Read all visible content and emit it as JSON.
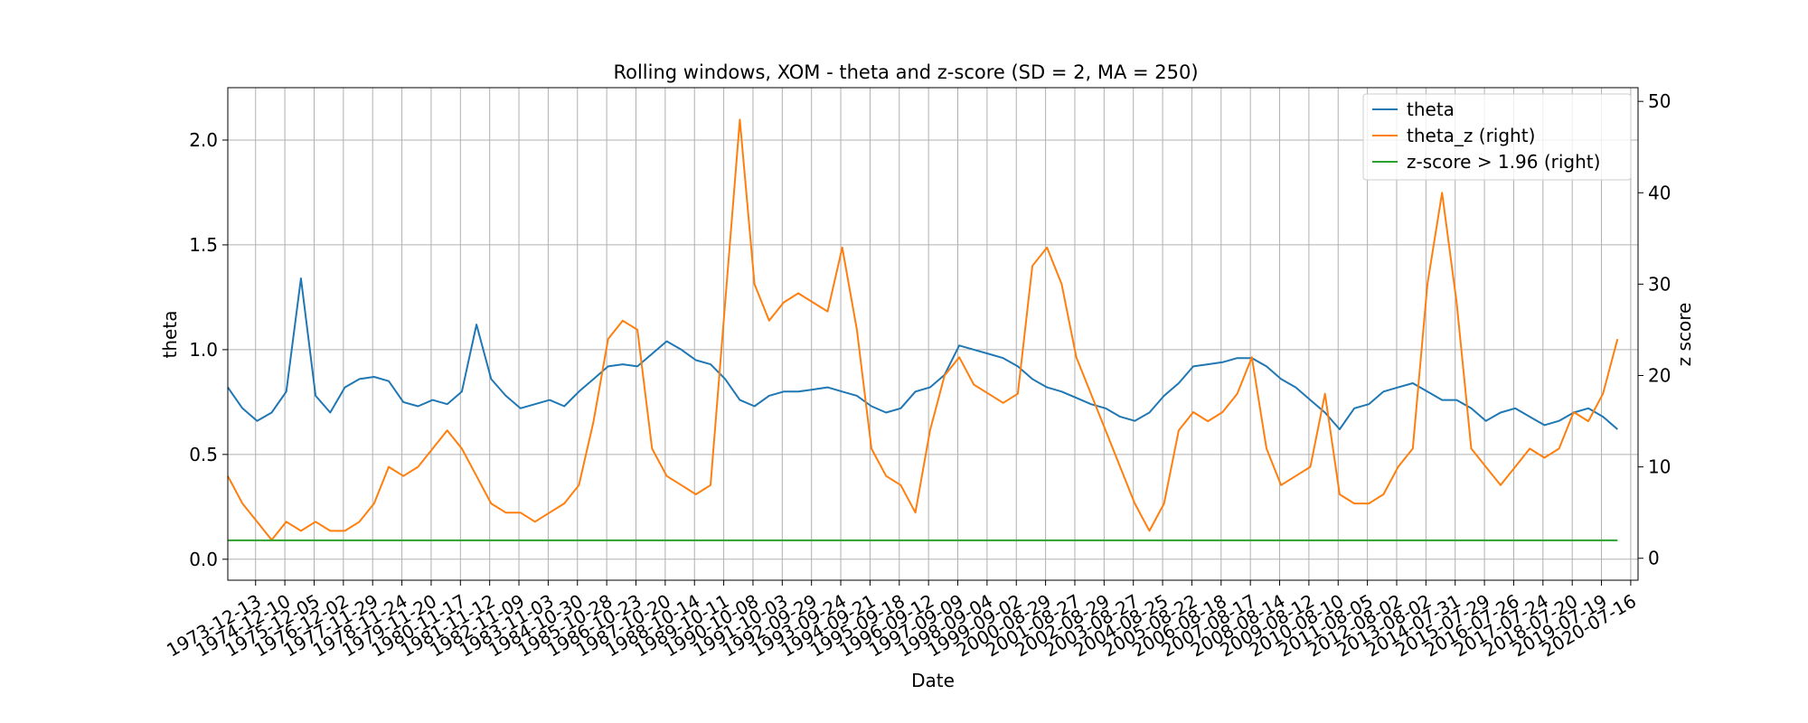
{
  "chart_data": {
    "type": "line",
    "title": "Rolling windows, XOM - theta and z-score (SD = 2, MA = 250)",
    "xlabel": "Date",
    "ylabel": "theta",
    "ylabel_right": "z score",
    "ylim": [
      -0.1,
      2.25
    ],
    "ylim_right": [
      -2.4,
      51.5
    ],
    "y_ticks": [
      0.0,
      0.5,
      1.0,
      1.5,
      2.0
    ],
    "y_tick_labels": [
      "0.0",
      "0.5",
      "1.0",
      "1.5",
      "2.0"
    ],
    "y_right_ticks": [
      0,
      10,
      20,
      30,
      40,
      50
    ],
    "y_right_tick_labels": [
      "0",
      "10",
      "20",
      "30",
      "40",
      "50"
    ],
    "grid": true,
    "legend_position": "top-right",
    "x_tick_labels": [
      "1973-12-13",
      "1974-12-10",
      "1975-12-05",
      "1976-12-02",
      "1977-11-29",
      "1978-11-24",
      "1979-11-20",
      "1980-11-17",
      "1981-11-12",
      "1982-11-09",
      "1983-11-03",
      "1984-10-30",
      "1985-10-28",
      "1986-10-23",
      "1987-10-20",
      "1988-10-14",
      "1989-10-11",
      "1990-10-08",
      "1991-10-03",
      "1992-09-29",
      "1993-09-24",
      "1994-09-21",
      "1995-09-18",
      "1996-09-12",
      "1997-09-09",
      "1998-09-04",
      "1999-09-02",
      "2000-08-29",
      "2001-08-27",
      "2002-08-29",
      "2003-08-27",
      "2004-08-25",
      "2005-08-22",
      "2006-08-18",
      "2007-08-17",
      "2008-08-14",
      "2009-08-12",
      "2010-08-10",
      "2011-08-05",
      "2012-08-02",
      "2013-08-02",
      "2014-07-31",
      "2015-07-29",
      "2016-07-26",
      "2017-07-24",
      "2018-07-20",
      "2019-07-19",
      "2020-07-16"
    ],
    "x": [
      1973.0,
      1973.5,
      1974.0,
      1974.5,
      1975.0,
      1975.5,
      1976.0,
      1976.5,
      1977.0,
      1977.5,
      1978.0,
      1978.5,
      1979.0,
      1979.5,
      1980.0,
      1980.5,
      1981.0,
      1981.5,
      1982.0,
      1982.5,
      1983.0,
      1983.5,
      1984.0,
      1984.5,
      1985.0,
      1985.5,
      1986.0,
      1986.5,
      1987.0,
      1987.5,
      1988.0,
      1988.5,
      1989.0,
      1989.5,
      1990.0,
      1990.5,
      1991.0,
      1991.5,
      1992.0,
      1992.5,
      1993.0,
      1993.5,
      1994.0,
      1994.5,
      1995.0,
      1995.5,
      1996.0,
      1996.5,
      1997.0,
      1997.5,
      1998.0,
      1998.5,
      1999.0,
      1999.5,
      2000.0,
      2000.5,
      2001.0,
      2001.5,
      2002.0,
      2002.5,
      2003.0,
      2003.5,
      2004.0,
      2004.5,
      2005.0,
      2005.5,
      2006.0,
      2006.5,
      2007.0,
      2007.5,
      2008.0,
      2008.5,
      2009.0,
      2009.5,
      2010.0,
      2010.5,
      2011.0,
      2011.5,
      2012.0,
      2012.5,
      2013.0,
      2013.5,
      2014.0,
      2014.5,
      2015.0,
      2015.5,
      2016.0,
      2016.5,
      2017.0,
      2017.5,
      2018.0,
      2018.5,
      2019.0,
      2019.5,
      2020.0,
      2020.5
    ],
    "series": [
      {
        "name": "theta",
        "axis": "left",
        "color": "#1f77b4",
        "values": [
          0.82,
          0.72,
          0.66,
          0.7,
          0.8,
          1.34,
          0.78,
          0.7,
          0.82,
          0.86,
          0.87,
          0.85,
          0.75,
          0.73,
          0.76,
          0.74,
          0.8,
          1.12,
          0.86,
          0.78,
          0.72,
          0.74,
          0.76,
          0.73,
          0.8,
          0.86,
          0.92,
          0.93,
          0.92,
          0.98,
          1.04,
          1.0,
          0.95,
          0.93,
          0.86,
          0.76,
          0.73,
          0.78,
          0.8,
          0.8,
          0.81,
          0.82,
          0.8,
          0.78,
          0.73,
          0.7,
          0.72,
          0.8,
          0.82,
          0.88,
          1.02,
          1.0,
          0.98,
          0.96,
          0.92,
          0.86,
          0.82,
          0.8,
          0.77,
          0.74,
          0.72,
          0.68,
          0.66,
          0.7,
          0.78,
          0.84,
          0.92,
          0.93,
          0.94,
          0.96,
          0.96,
          0.92,
          0.86,
          0.82,
          0.76,
          0.7,
          0.62,
          0.72,
          0.74,
          0.8,
          0.82,
          0.84,
          0.8,
          0.76,
          0.76,
          0.72,
          0.66,
          0.7,
          0.72,
          0.68,
          0.64,
          0.66,
          0.7,
          0.72,
          0.68,
          0.62
        ]
      },
      {
        "name": "theta_z (right)",
        "axis": "right",
        "color": "#ff7f0e",
        "values": [
          9,
          6,
          4,
          2,
          4,
          3,
          4,
          3,
          3,
          4,
          6,
          10,
          9,
          10,
          12,
          14,
          12,
          9,
          6,
          5,
          5,
          4,
          5,
          6,
          8,
          15,
          24,
          26,
          25,
          12,
          9,
          8,
          7,
          8,
          28,
          48,
          30,
          26,
          28,
          29,
          28,
          27,
          34,
          25,
          12,
          9,
          8,
          5,
          14,
          20,
          22,
          19,
          18,
          17,
          18,
          32,
          34,
          30,
          22,
          18,
          14,
          10,
          6,
          3,
          6,
          14,
          16,
          15,
          16,
          18,
          22,
          12,
          8,
          9,
          10,
          18,
          7,
          6,
          6,
          7,
          10,
          12,
          30,
          40,
          28,
          12,
          10,
          8,
          10,
          12,
          11,
          12,
          16,
          15,
          18,
          24
        ]
      },
      {
        "name": "z-score > 1.96 (right)",
        "axis": "right",
        "color": "#2ca02c",
        "values": [
          1.96,
          1.96,
          1.96,
          1.96,
          1.96,
          1.96,
          1.96,
          1.96,
          1.96,
          1.96,
          1.96,
          1.96,
          1.96,
          1.96,
          1.96,
          1.96,
          1.96,
          1.96,
          1.96,
          1.96,
          1.96,
          1.96,
          1.96,
          1.96,
          1.96,
          1.96,
          1.96,
          1.96,
          1.96,
          1.96,
          1.96,
          1.96,
          1.96,
          1.96,
          1.96,
          1.96,
          1.96,
          1.96,
          1.96,
          1.96,
          1.96,
          1.96,
          1.96,
          1.96,
          1.96,
          1.96,
          1.96,
          1.96,
          1.96,
          1.96,
          1.96,
          1.96,
          1.96,
          1.96,
          1.96,
          1.96,
          1.96,
          1.96,
          1.96,
          1.96,
          1.96,
          1.96,
          1.96,
          1.96,
          1.96,
          1.96,
          1.96,
          1.96,
          1.96,
          1.96,
          1.96,
          1.96,
          1.96,
          1.96,
          1.96,
          1.96,
          1.96,
          1.96,
          1.96,
          1.96,
          1.96,
          1.96,
          1.96,
          1.96,
          1.96,
          1.96,
          1.96,
          1.96,
          1.96,
          1.96,
          1.96,
          1.96,
          1.96,
          1.96,
          1.96,
          1.96
        ]
      }
    ]
  }
}
